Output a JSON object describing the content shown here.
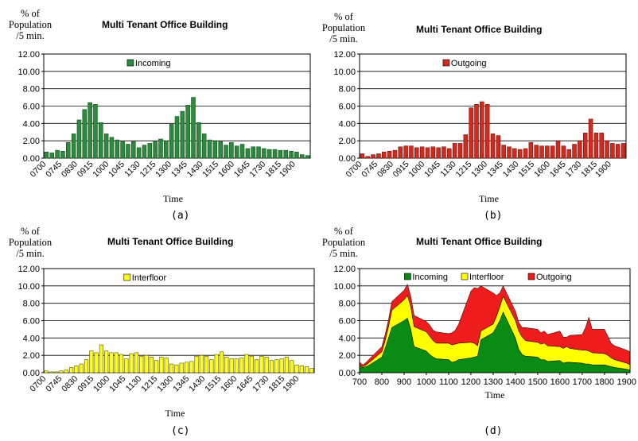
{
  "y_axis_label": [
    "% of",
    "Population",
    "/5 min."
  ],
  "chart_data": [
    {
      "type": "bar",
      "title": "Multi Tenant Office Building",
      "xlabel": "Time",
      "ylabel": "% of Population /5 min.",
      "caption": "(a)",
      "ylim": [
        0,
        12
      ],
      "yticks": [
        "0.00",
        "2.00",
        "4.00",
        "6.00",
        "8.00",
        "10.00",
        "12.00"
      ],
      "xtick_labels": [
        "0700",
        "0745",
        "0830",
        "0915",
        "1000",
        "1045",
        "1130",
        "1215",
        "1300",
        "1345",
        "1430",
        "1515",
        "1600",
        "1645",
        "1730",
        "1815",
        "1900"
      ],
      "grid": true,
      "legend": "top-center",
      "colors": {
        "bar": "#2e8b3e",
        "edge": "#0f4d1a",
        "plot_bg": "#ffffff"
      },
      "series": [
        {
          "name": "Incoming",
          "values": [
            0.7,
            0.6,
            0.9,
            0.8,
            1.8,
            2.8,
            4.4,
            5.6,
            6.4,
            6.2,
            4.1,
            2.8,
            2.4,
            2.1,
            1.9,
            1.6,
            1.9,
            1.2,
            1.5,
            1.7,
            1.9,
            2.2,
            2.0,
            3.9,
            4.8,
            5.4,
            6.1,
            7.0,
            4.1,
            2.8,
            2.1,
            2.0,
            1.9,
            1.5,
            1.8,
            1.4,
            1.6,
            1.1,
            1.3,
            1.3,
            1.1,
            1.0,
            1.0,
            0.9,
            0.9,
            0.8,
            0.7,
            0.4,
            0.3
          ]
        }
      ]
    },
    {
      "type": "bar",
      "title": "Multi Tenant Office Building",
      "xlabel": "Time",
      "ylabel": "% of Population /5 min.",
      "caption": "(b)",
      "ylim": [
        0,
        12
      ],
      "yticks": [
        "0.00",
        "2.00",
        "4.00",
        "6.00",
        "8.00",
        "10.00",
        "12.00"
      ],
      "xtick_labels": [
        "0700",
        "0745",
        "0830",
        "0915",
        "1000",
        "1045",
        "1130",
        "1215",
        "1300",
        "1345",
        "1430",
        "1515",
        "1600",
        "1645",
        "1730",
        "1815",
        "1900"
      ],
      "grid": true,
      "legend": "top-center",
      "colors": {
        "bar": "#d42a1e",
        "edge": "#6e0f08",
        "plot_bg": "#ffffff"
      },
      "series": [
        {
          "name": "Outgoing",
          "values": [
            0.5,
            0.2,
            0.4,
            0.5,
            0.7,
            0.8,
            0.9,
            1.3,
            1.4,
            1.4,
            1.2,
            1.3,
            1.2,
            1.3,
            1.2,
            1.3,
            1.1,
            1.7,
            1.7,
            2.7,
            5.8,
            6.2,
            6.5,
            6.2,
            2.8,
            2.6,
            1.5,
            1.3,
            1.1,
            1.0,
            1.1,
            1.8,
            1.5,
            1.4,
            1.4,
            1.4,
            2.0,
            1.4,
            1.0,
            1.6,
            2.0,
            2.9,
            4.5,
            2.9,
            2.9,
            2.0,
            1.7,
            1.6,
            1.7
          ]
        }
      ]
    },
    {
      "type": "bar",
      "title": "Multi Tenant Office Building",
      "xlabel": "Time",
      "ylabel": "% of Population /5 min.",
      "caption": "(c)",
      "ylim": [
        0,
        12
      ],
      "yticks": [
        "0.00",
        "2.00",
        "4.00",
        "6.00",
        "8.00",
        "10.00",
        "12.00"
      ],
      "xtick_labels": [
        "0700",
        "0745",
        "0830",
        "0915",
        "1000",
        "1045",
        "1130",
        "1215",
        "1300",
        "1345",
        "1430",
        "1515",
        "1600",
        "1645",
        "1730",
        "1815",
        "1900"
      ],
      "grid": true,
      "legend": "top-center",
      "colors": {
        "bar": "#ffff1a",
        "edge": "#555500",
        "plot_bg": "#ffffff"
      },
      "series": [
        {
          "name": "Interfloor",
          "values": [
            0.2,
            0.1,
            0.1,
            0.2,
            0.3,
            0.6,
            0.8,
            1.0,
            1.5,
            2.5,
            2.3,
            3.2,
            2.5,
            2.3,
            2.3,
            2.1,
            1.6,
            2.2,
            2.3,
            1.9,
            2.0,
            1.8,
            1.4,
            1.8,
            1.7,
            1.0,
            0.9,
            1.1,
            1.2,
            1.3,
            1.9,
            2.0,
            1.9,
            1.5,
            2.1,
            2.4,
            1.8,
            1.6,
            1.6,
            1.7,
            2.1,
            1.9,
            1.5,
            1.9,
            1.8,
            1.4,
            1.5,
            1.6,
            1.8,
            1.4,
            0.9,
            0.8,
            0.7,
            0.5
          ]
        }
      ]
    },
    {
      "type": "area",
      "stacked": true,
      "title": "Multi Tenant Office Building",
      "xlabel": "Time",
      "ylabel": "% of Population /5 min.",
      "caption": "(d)",
      "ylim": [
        0,
        12
      ],
      "xlim": [
        700,
        1915
      ],
      "yticks": [
        "0.00",
        "2.00",
        "4.00",
        "6.00",
        "8.00",
        "10.00",
        "12.00"
      ],
      "xtick_labels": [
        "700",
        "800",
        "900",
        "1000",
        "1100",
        "1200",
        "1300",
        "1400",
        "1500",
        "1600",
        "1700",
        "1800",
        "1900"
      ],
      "grid": true,
      "legend": "top",
      "x": [
        700,
        715,
        730,
        745,
        800,
        815,
        830,
        845,
        900,
        915,
        930,
        945,
        1000,
        1015,
        1030,
        1045,
        1100,
        1115,
        1130,
        1145,
        1200,
        1215,
        1230,
        1245,
        1300,
        1315,
        1330,
        1345,
        1400,
        1415,
        1430,
        1445,
        1500,
        1515,
        1530,
        1545,
        1600,
        1615,
        1630,
        1645,
        1700,
        1715,
        1730,
        1745,
        1800,
        1815,
        1830,
        1845,
        1900,
        1915
      ],
      "series": [
        {
          "name": "Incoming",
          "color": "#0a8c14",
          "values": [
            0.7,
            0.6,
            0.7,
            0.9,
            1.8,
            2.8,
            4.0,
            5.2,
            6.0,
            6.3,
            5.0,
            3.0,
            2.5,
            2.1,
            1.8,
            1.6,
            1.5,
            1.2,
            1.3,
            1.5,
            1.7,
            1.8,
            1.9,
            3.8,
            4.6,
            5.3,
            6.0,
            7.0,
            4.0,
            2.7,
            2.1,
            1.9,
            1.8,
            1.5,
            1.5,
            1.3,
            1.4,
            1.1,
            1.2,
            1.2,
            1.1,
            1.0,
            1.0,
            0.9,
            0.9,
            0.8,
            0.7,
            0.6,
            0.4,
            0.3
          ]
        },
        {
          "name": "Interfloor",
          "color": "#ffff00",
          "values": [
            0.1,
            0.1,
            0.2,
            0.3,
            0.6,
            0.9,
            1.3,
            2.0,
            2.4,
            2.6,
            2.6,
            2.3,
            2.2,
            2.1,
            1.9,
            1.8,
            1.9,
            2.0,
            2.0,
            1.9,
            1.8,
            1.6,
            1.2,
            1.0,
            1.0,
            1.2,
            1.6,
            1.8,
            2.0,
            2.1,
            2.0,
            1.8,
            1.7,
            1.8,
            1.9,
            1.8,
            1.6,
            1.7,
            1.8,
            1.6,
            1.5,
            1.6,
            1.5,
            1.4,
            1.3,
            1.2,
            1.0,
            0.9,
            0.7,
            0.6
          ]
        },
        {
          "name": "Outgoing",
          "color": "#ee1c1c",
          "values": [
            0.4,
            0.2,
            0.3,
            0.4,
            0.6,
            0.7,
            0.8,
            1.0,
            1.1,
            1.3,
            1.2,
            1.3,
            1.2,
            1.3,
            1.2,
            1.3,
            1.1,
            1.4,
            1.6,
            2.2,
            5.9,
            6.4,
            6.6,
            5.2,
            3.6,
            2.4,
            1.6,
            1.2,
            1.1,
            1.0,
            1.1,
            1.5,
            1.5,
            1.3,
            1.4,
            1.3,
            1.8,
            1.3,
            1.1,
            1.5,
            1.8,
            2.6,
            3.9,
            2.7,
            2.8,
            2.2,
            1.7,
            1.6,
            1.5,
            1.5
          ]
        }
      ]
    }
  ]
}
